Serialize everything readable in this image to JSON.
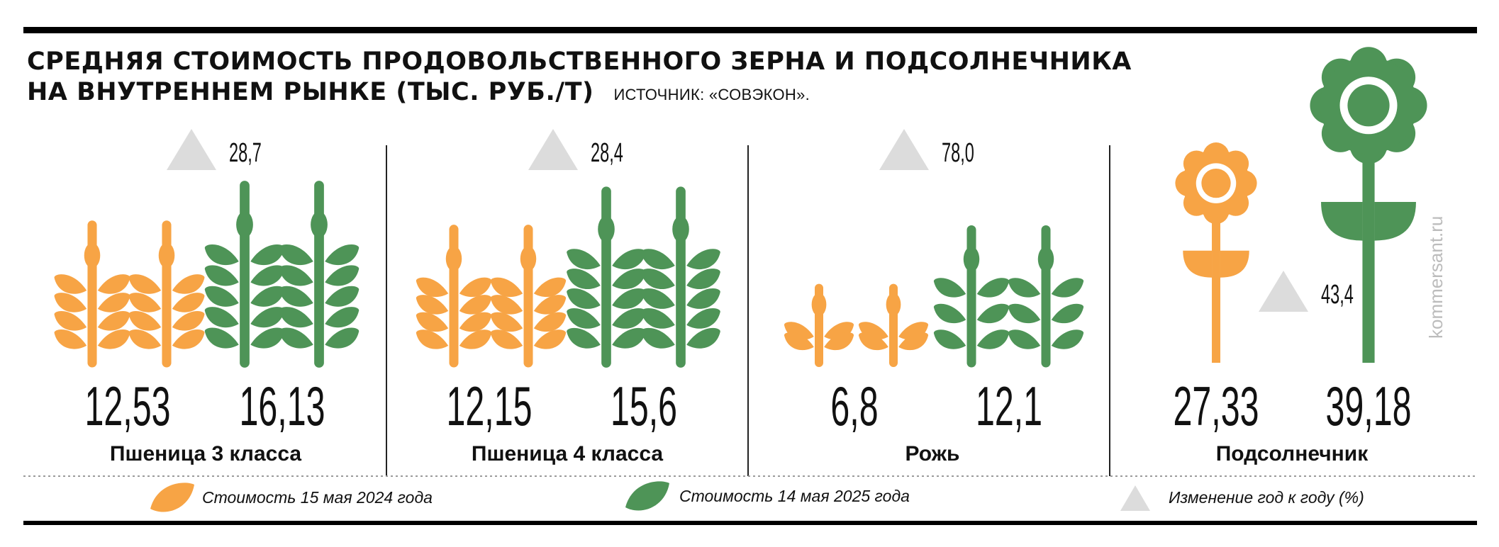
{
  "title_line1": "СРЕДНЯЯ СТОИМОСТЬ ПРОДОВОЛЬСТВЕННОГО ЗЕРНА И ПОДСОЛНЕЧНИКА",
  "title_line2": "НА ВНУТРЕННЕМ РЫНКЕ (ТЫС. РУБ./Т)",
  "source": "ИСТОЧНИК: «СОВЭКОН».",
  "watermark": "kommersant.ru",
  "colors": {
    "orange": "#f7a445",
    "green": "#4e9457",
    "triangle": "#dcdcdc",
    "text": "#111111"
  },
  "chart_data": {
    "type": "bar",
    "unit": "тыс. руб./т",
    "categories": [
      "Пшеница 3 класса",
      "Пшеница 4 класса",
      "Рожь",
      "Подсолнечник"
    ],
    "icons": [
      "wheat-icon",
      "wheat-icon",
      "wheat-icon",
      "flower-icon"
    ],
    "series": [
      {
        "name": "Стоимость 15 мая 2024 года",
        "color": "#f7a445",
        "values": [
          12.53,
          12.15,
          6.8,
          27.33
        ],
        "labels": [
          "12,53",
          "12,15",
          "6,8",
          "27,33"
        ]
      },
      {
        "name": "Стоимость 14 мая 2025 года",
        "color": "#4e9457",
        "values": [
          16.13,
          15.6,
          12.1,
          39.18
        ],
        "labels": [
          "16,13",
          "15,6",
          "12,1",
          "39,18"
        ]
      }
    ],
    "change": {
      "name": "Изменение год к году (%)",
      "values": [
        28.7,
        28.4,
        78.0,
        43.4
      ],
      "labels": [
        "28,7",
        "28,4",
        "78,0",
        "43,4"
      ]
    },
    "legend": [
      "Стоимость 15 мая 2024 года",
      "Стоимость 14 мая 2025 года",
      "Изменение год к году (%)"
    ]
  }
}
